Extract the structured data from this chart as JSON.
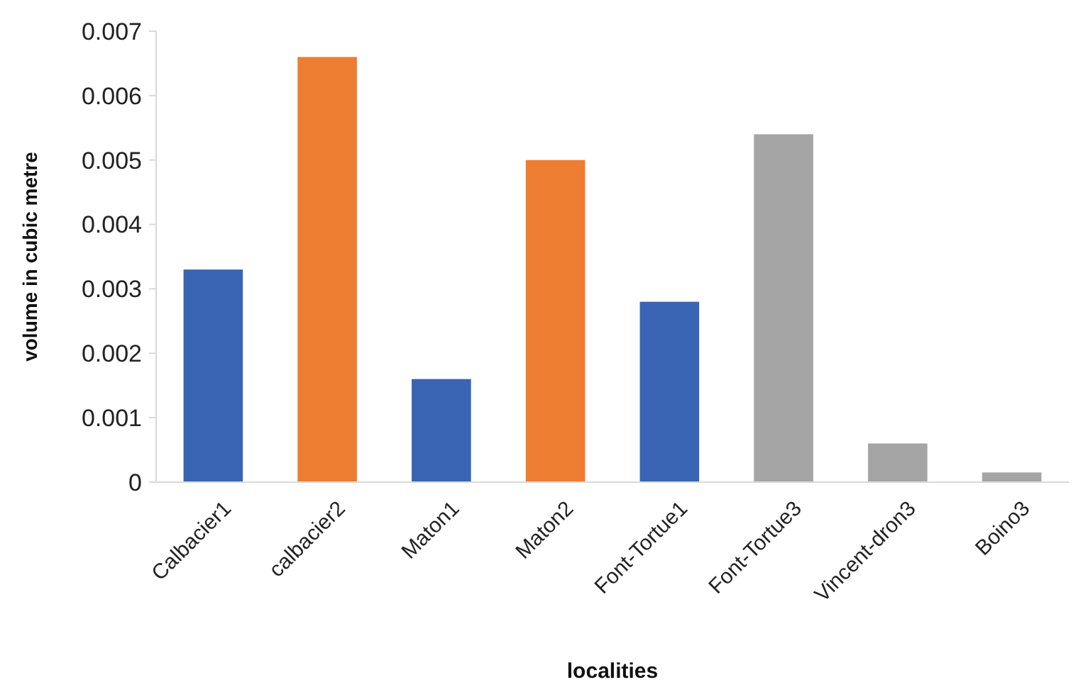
{
  "chart_data": {
    "type": "bar",
    "xlabel": "localities",
    "ylabel": "volume in cubic metre",
    "categories": [
      "Calbacier1",
      "calbacier2",
      "Maton1",
      "Maton2",
      "Font-Tortue1",
      "Font-Tortue3",
      "Vincent-dron3",
      "Boino3"
    ],
    "values": [
      0.0033,
      0.0066,
      0.0016,
      0.005,
      0.0028,
      0.0054,
      0.0006,
      0.00015
    ],
    "colors": [
      "#3a64b4",
      "#ed7d31",
      "#3a64b4",
      "#ed7d31",
      "#3a64b4",
      "#a5a5a5",
      "#a5a5a5",
      "#a5a5a5"
    ],
    "ylim": [
      0,
      0.007
    ],
    "yticks": [
      0,
      0.001,
      0.002,
      0.003,
      0.004,
      0.005,
      0.006,
      0.007
    ],
    "grid": false
  }
}
